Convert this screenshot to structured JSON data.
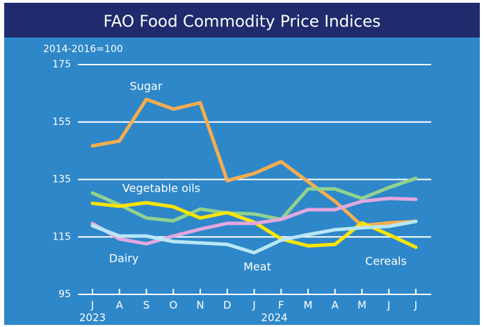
{
  "chart_data": {
    "type": "line",
    "title": "FAO Food Commodity Price Indices",
    "y_unit_label": "2014-2016=100",
    "categories": [
      "J",
      "A",
      "S",
      "O",
      "N",
      "D",
      "J",
      "F",
      "M",
      "A",
      "M",
      "J",
      "J"
    ],
    "x_years": [
      "2023",
      null,
      null,
      null,
      null,
      null,
      "2024",
      null,
      null,
      null,
      null,
      null,
      null
    ],
    "ylim": [
      95,
      175
    ],
    "yticks": [
      95,
      115,
      135,
      155,
      175
    ],
    "grid": true,
    "series": [
      {
        "name": "Sugar",
        "color": "#f6ad4f",
        "values": [
          146.7,
          148.4,
          162.9,
          159.5,
          161.7,
          134.6,
          137.1,
          141.2,
          134.2,
          127.4,
          118.9,
          119.9,
          120.4
        ]
      },
      {
        "name": "Vegetable oils",
        "color": "#90d28e",
        "values": [
          130.3,
          126.2,
          121.6,
          120.6,
          124.7,
          123.3,
          123.0,
          121.1,
          131.7,
          131.7,
          128.4,
          132.2,
          135.4
        ]
      },
      {
        "name": "Cereals",
        "color": "#ffe400",
        "values": [
          126.7,
          125.7,
          126.9,
          125.5,
          121.6,
          123.5,
          120.1,
          114.3,
          111.9,
          112.4,
          119.9,
          115.8,
          111.4
        ]
      },
      {
        "name": "Dairy",
        "color": "#e2a7e0",
        "values": [
          119.7,
          114.3,
          112.6,
          115.3,
          117.7,
          119.7,
          119.7,
          121.1,
          124.5,
          124.5,
          127.4,
          128.4,
          128.1
        ]
      },
      {
        "name": "Meat",
        "color": "#b9e7f6",
        "values": [
          118.9,
          115.3,
          115.3,
          113.4,
          112.9,
          112.4,
          109.5,
          113.9,
          115.8,
          117.5,
          118.2,
          118.7,
          120.4
        ]
      }
    ]
  }
}
